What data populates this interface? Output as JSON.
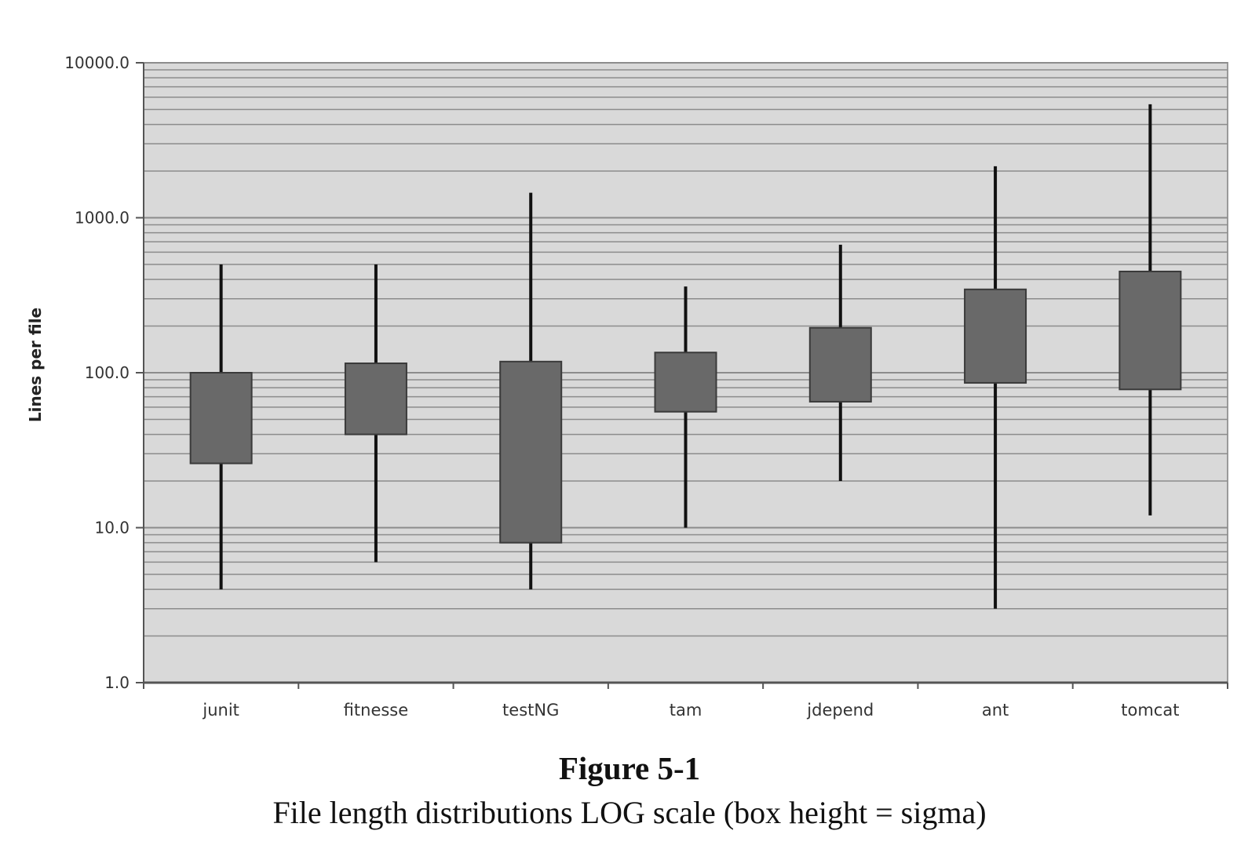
{
  "chart_data": {
    "type": "box",
    "title": "",
    "xlabel": "",
    "ylabel": "Lines per file",
    "yscale": "log",
    "ylim": [
      1,
      10000
    ],
    "yticks": [
      "1.0",
      "10.0",
      "100.0",
      "1000.0",
      "10000.0"
    ],
    "grid": true,
    "categories": [
      "junit",
      "fitnesse",
      "testNG",
      "tam",
      "jdepend",
      "ant",
      "tomcat"
    ],
    "series": [
      {
        "name": "junit",
        "min": 4,
        "box_low": 26,
        "box_high": 100,
        "max": 500
      },
      {
        "name": "fitnesse",
        "min": 6,
        "box_low": 40,
        "box_high": 115,
        "max": 500
      },
      {
        "name": "testNG",
        "min": 4,
        "box_low": 8,
        "box_high": 118,
        "max": 1450
      },
      {
        "name": "tam",
        "min": 10,
        "box_low": 56,
        "box_high": 135,
        "max": 360
      },
      {
        "name": "jdepend",
        "min": 20,
        "box_low": 65,
        "box_high": 195,
        "max": 670
      },
      {
        "name": "ant",
        "min": 3,
        "box_low": 86,
        "box_high": 345,
        "max": 2150
      },
      {
        "name": "tomcat",
        "min": 12,
        "box_low": 78,
        "box_high": 450,
        "max": 5400
      }
    ],
    "colors": {
      "plot_bg": "#d9d9d9",
      "box": "#696969",
      "whisker": "#111111",
      "grid": "#8c8c8c"
    }
  },
  "figure": {
    "number": "Figure 5-1",
    "caption": "File length distributions LOG scale (box height = sigma)"
  }
}
